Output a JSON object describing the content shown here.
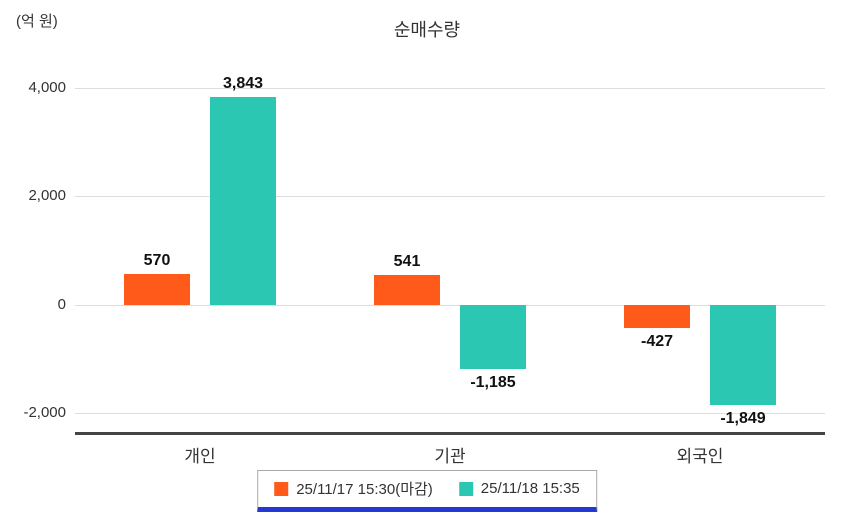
{
  "chart_data": {
    "type": "bar",
    "title": "순매수량",
    "unit_label": "(억 원)",
    "categories": [
      "개인",
      "기관",
      "외국인"
    ],
    "series": [
      {
        "name": "25/11/17 15:30(마감)",
        "color": "#ff5a1a",
        "values": [
          570,
          541,
          -427
        ]
      },
      {
        "name": "25/11/18 15:35",
        "color": "#2cc7b2",
        "values": [
          3843,
          -1185,
          -1849
        ]
      }
    ],
    "value_labels": [
      "570",
      "3,843",
      "541",
      "-1,185",
      "-427",
      "-1,849"
    ],
    "y_ticks": [
      4000,
      2000,
      0,
      -2000
    ],
    "ylim": [
      -2350,
      4150
    ],
    "grid": true,
    "legend_position": "bottom",
    "colors": {
      "grid": "#dddddd",
      "axis_baseline": "#444444",
      "legend_border": "#aaaaaa",
      "legend_accent": "#2438d4",
      "text": "#333333",
      "value_label": "#111111"
    }
  }
}
